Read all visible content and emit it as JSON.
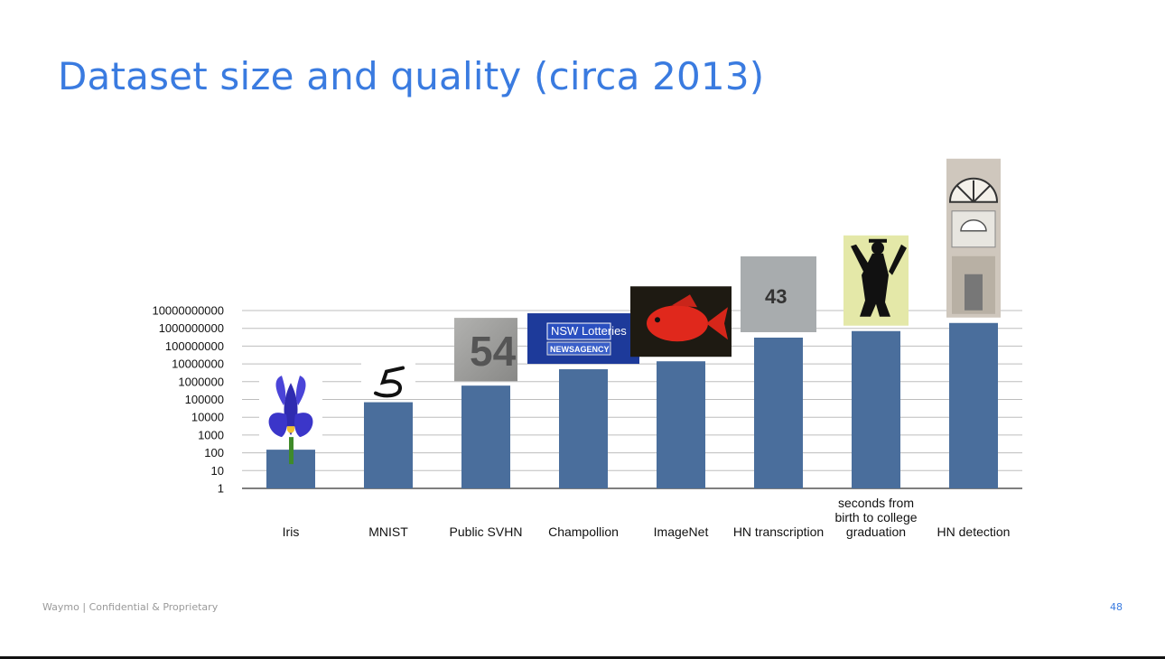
{
  "slide": {
    "title": "Dataset size and quality (circa 2013)",
    "footer": "Waymo | Confidential & Proprietary",
    "page_number": "48"
  },
  "chart_data": {
    "type": "bar",
    "title": "",
    "xlabel": "",
    "ylabel": "",
    "yscale": "log",
    "ylim": [
      1,
      10000000000
    ],
    "yticks": [
      "1",
      "10",
      "100",
      "1000",
      "10000",
      "100000",
      "1000000",
      "10000000",
      "100000000",
      "1000000000",
      "10000000000"
    ],
    "grid": true,
    "bar_color": "#4a6e9c",
    "categories": [
      "Iris",
      "MNIST",
      "Public SVHN",
      "Champollion",
      "ImageNet",
      "HN transcription",
      "seconds from birth to college graduation",
      "HN detection"
    ],
    "values": [
      150,
      70000,
      600000,
      5000000,
      14000000,
      300000000,
      700000000,
      2000000000
    ],
    "category_images": [
      "iris-flower",
      "handwritten-digit-5",
      "house-number-54",
      "nsw-lotteries-sign",
      "red-fish",
      "house-number-43",
      "graduate-silhouette",
      "building-facade"
    ]
  }
}
